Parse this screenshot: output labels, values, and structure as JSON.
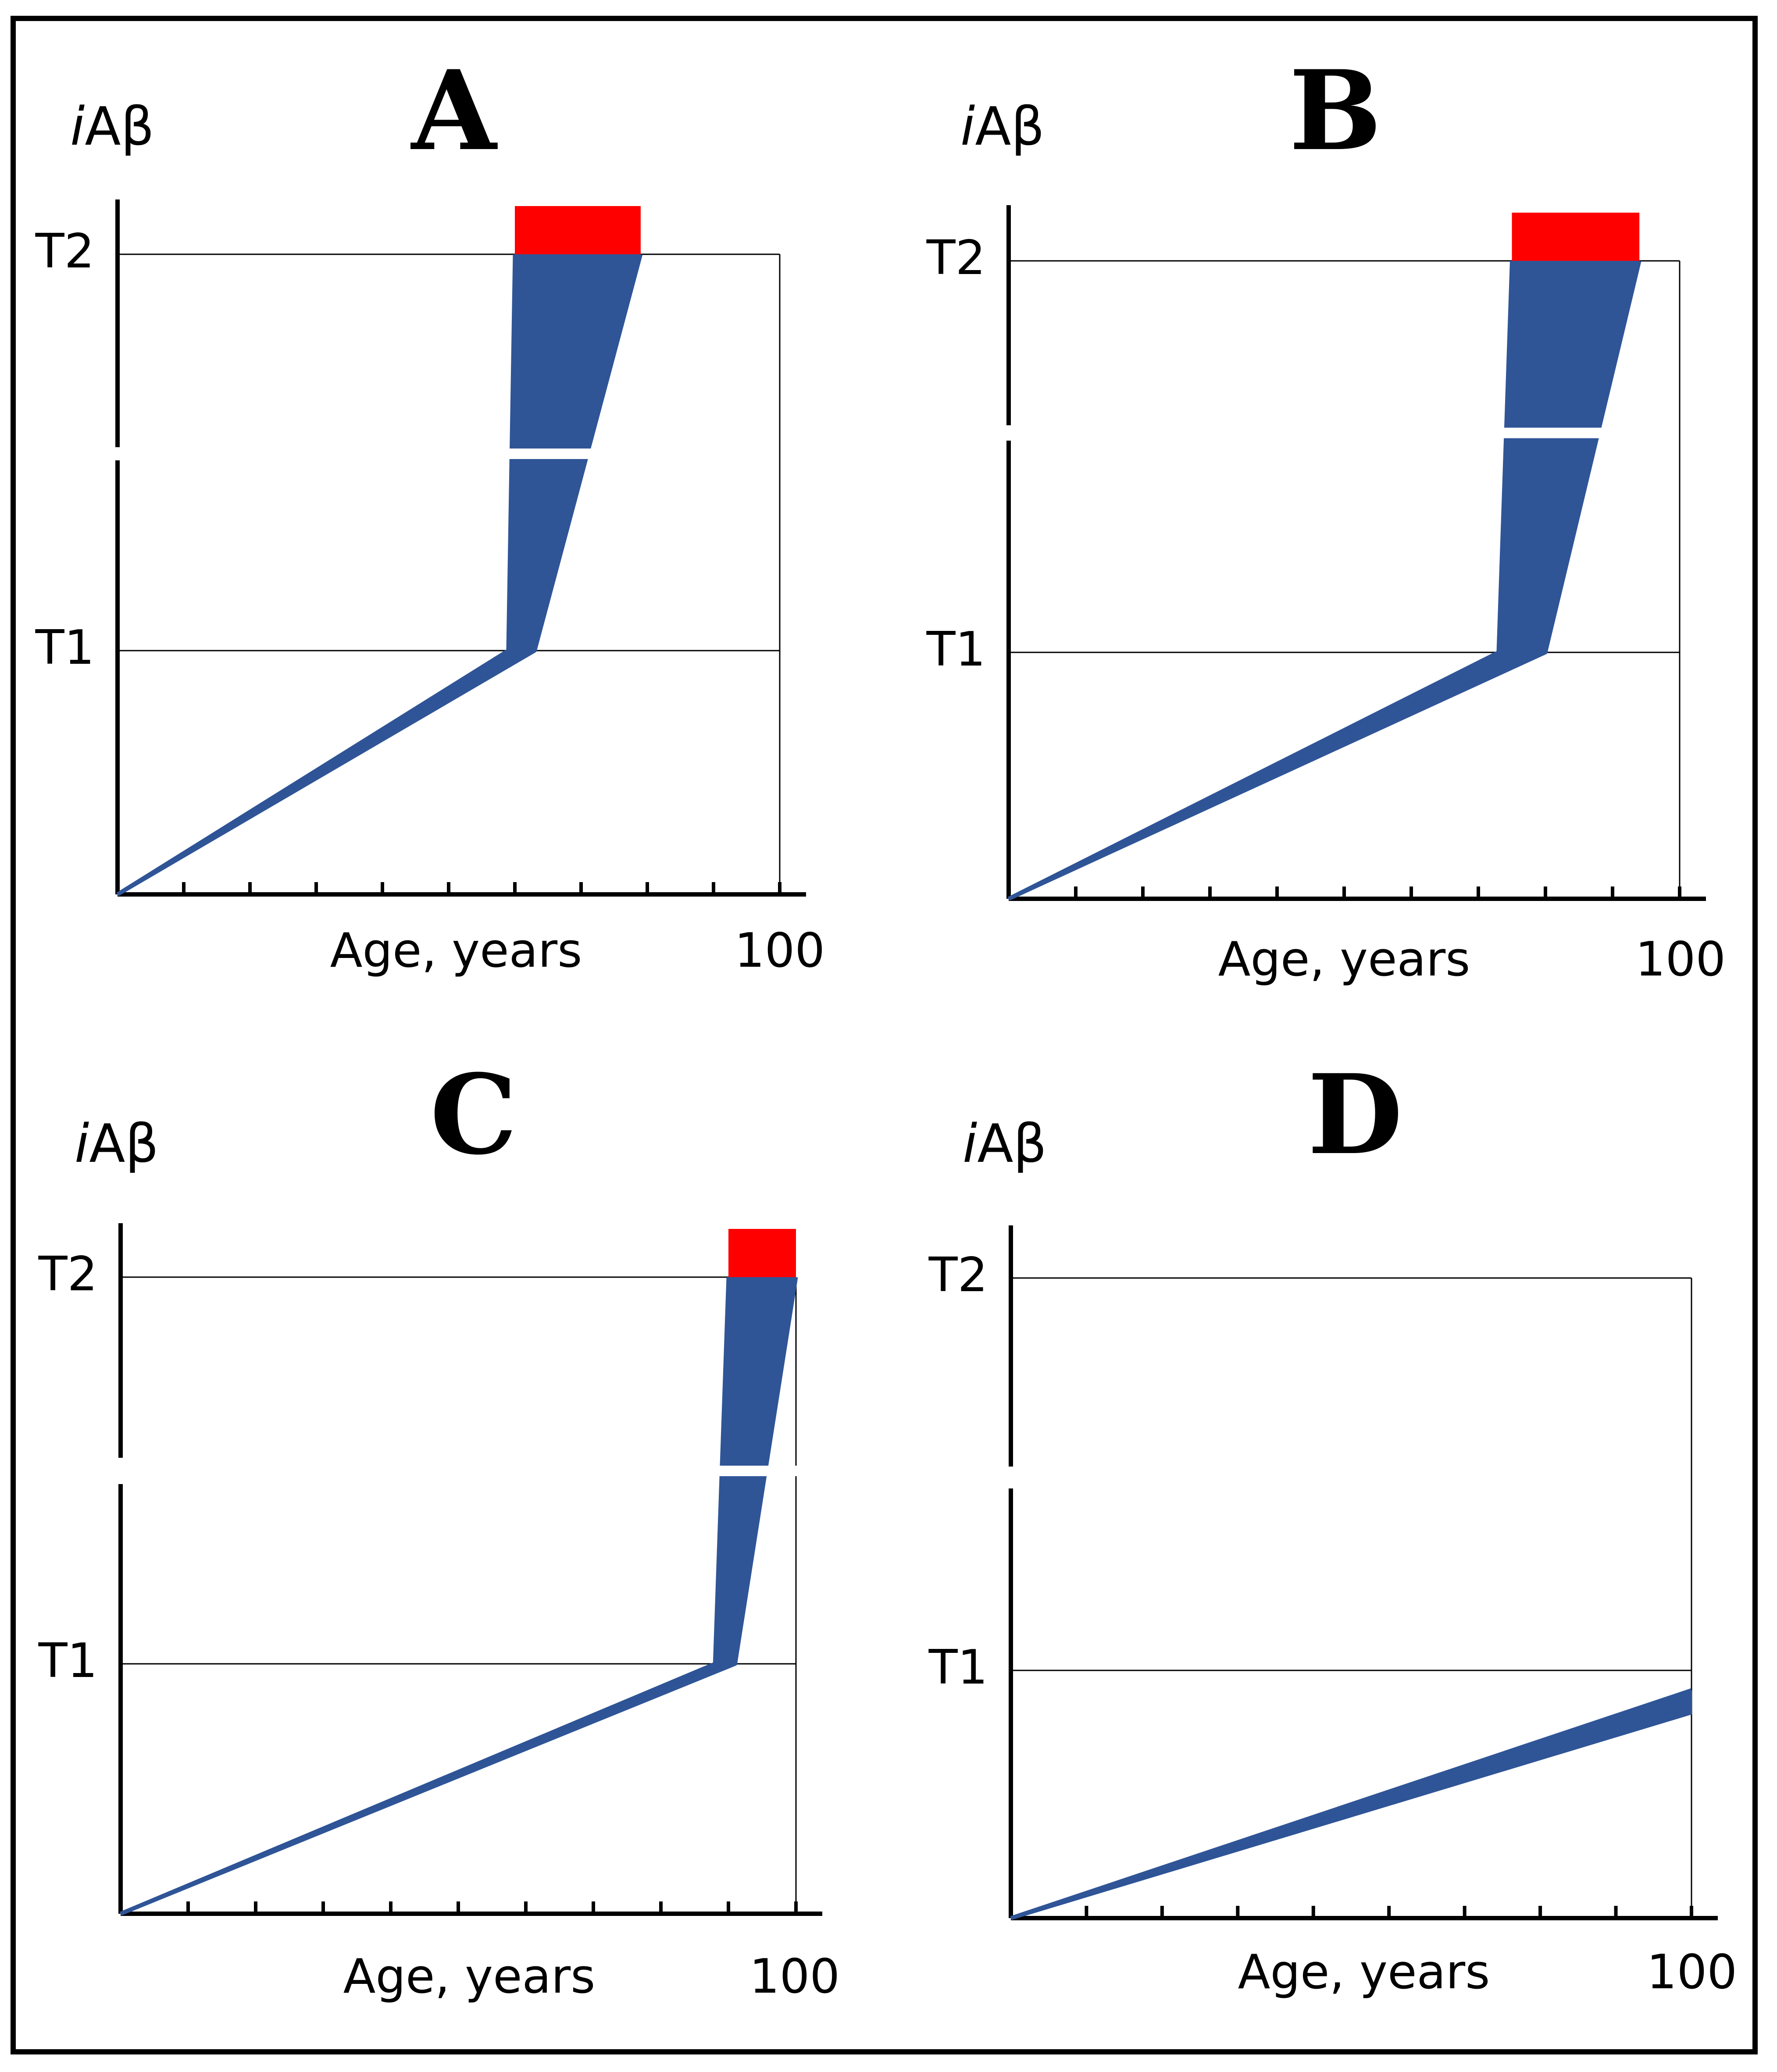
{
  "colors": {
    "fan": "#2f5597",
    "threshold_bar": "#ff0000",
    "axis": "#000000"
  },
  "chart_data": [
    {
      "type": "line",
      "panel": "A",
      "ylabel_italic": "i",
      "ylabel_main": "Aβ",
      "xlabel": "Age, years",
      "x_max_label": "100",
      "y_ticks": [
        "T1",
        "T2"
      ],
      "xlim": [
        0,
        100
      ],
      "x_minor_ticks": 11,
      "break_band": true,
      "trajectories": {
        "start": [
          0,
          0
        ],
        "t1_age_range": [
          59,
          63
        ],
        "t2_age_range": [
          60,
          79
        ],
        "red_bar_age_range": [
          60,
          79
        ]
      }
    },
    {
      "type": "line",
      "panel": "B",
      "ylabel_italic": "i",
      "ylabel_main": "Aβ",
      "xlabel": "Age, years",
      "x_max_label": "100",
      "y_ticks": [
        "T1",
        "T2"
      ],
      "xlim": [
        0,
        100
      ],
      "x_minor_ticks": 11,
      "break_band": true,
      "trajectories": {
        "start": [
          0,
          0
        ],
        "t1_age_range": [
          73,
          80
        ],
        "t2_age_range": [
          75,
          94
        ],
        "red_bar_age_range": [
          75,
          94
        ]
      }
    },
    {
      "type": "line",
      "panel": "C",
      "ylabel_italic": "i",
      "ylabel_main": "Aβ",
      "xlabel": "Age, years",
      "x_max_label": "100",
      "y_ticks": [
        "T1",
        "T2"
      ],
      "xlim": [
        0,
        100
      ],
      "x_minor_ticks": 11,
      "break_band": true,
      "trajectories": {
        "start": [
          0,
          0
        ],
        "t1_age_range": [
          88,
          91
        ],
        "t2_age_range": [
          90,
          100
        ],
        "red_bar_age_range": [
          90,
          100
        ]
      }
    },
    {
      "type": "line",
      "panel": "D",
      "ylabel_italic": "i",
      "ylabel_main": "Aβ",
      "xlabel": "Age, years",
      "x_max_label": "100",
      "y_ticks": [
        "T1",
        "T2"
      ],
      "xlim": [
        0,
        100
      ],
      "x_minor_ticks": 10,
      "break_band": false,
      "trajectories": {
        "start": [
          0,
          0
        ],
        "end_age": 100,
        "end_level_fraction_of_t1": [
          0.83,
          0.92
        ]
      }
    }
  ]
}
